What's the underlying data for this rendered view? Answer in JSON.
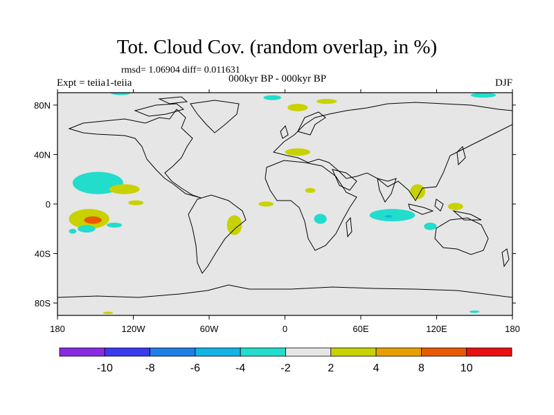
{
  "title": "Tot. Cloud Cov. (random overlap, in %)",
  "stats": "rmsd= 1.06904 diff= 0.011631",
  "experiment": "Expt = teiia1-teiia",
  "period": "000kyr BP - 000kyr BP",
  "season": "DJF",
  "colors": {
    "background": "#e6e6e6",
    "coast": "#000000",
    "bins": [
      "#8a2be2",
      "#3a3aee",
      "#1f7fe6",
      "#11b4e4",
      "#22dccc",
      "#e6e6e6",
      "#c8d200",
      "#e8a000",
      "#e85a00",
      "#e81010"
    ]
  },
  "colorbar": {
    "labels": [
      "-10",
      "-8",
      "-6",
      "-4",
      "-2",
      "2",
      "4",
      "8",
      "10"
    ]
  },
  "axes": {
    "x_ticks": [
      {
        "lon": -180,
        "label": "180"
      },
      {
        "lon": -120,
        "label": "120W"
      },
      {
        "lon": -60,
        "label": "60W"
      },
      {
        "lon": 0,
        "label": "0"
      },
      {
        "lon": 60,
        "label": "60E"
      },
      {
        "lon": 120,
        "label": "120E"
      },
      {
        "lon": 180,
        "label": "180"
      }
    ],
    "y_ticks": [
      {
        "lat": 80,
        "label": "80N"
      },
      {
        "lat": 40,
        "label": "40N"
      },
      {
        "lat": 0,
        "label": "0"
      },
      {
        "lat": -40,
        "label": "40S"
      },
      {
        "lat": -80,
        "label": "80S"
      }
    ]
  },
  "anomalies": [
    {
      "lon": -155,
      "lat": -12,
      "rx": 16,
      "ry": 8,
      "bin": 6
    },
    {
      "lon": -152,
      "lat": -13,
      "rx": 7,
      "ry": 3,
      "bin": 8
    },
    {
      "lon": -148,
      "lat": 17,
      "rx": 20,
      "ry": 9,
      "bin": 4
    },
    {
      "lon": -127,
      "lat": 12,
      "rx": 12,
      "ry": 4,
      "bin": 6
    },
    {
      "lon": -118,
      "lat": 1,
      "rx": 6,
      "ry": 2,
      "bin": 6
    },
    {
      "lon": -157,
      "lat": -20,
      "rx": 7,
      "ry": 3,
      "bin": 4
    },
    {
      "lon": -135,
      "lat": -17,
      "rx": 6,
      "ry": 2,
      "bin": 4
    },
    {
      "lon": -130,
      "lat": 90,
      "rx": 8,
      "ry": 2,
      "bin": 4
    },
    {
      "lon": -10,
      "lat": 86,
      "rx": 7,
      "ry": 2,
      "bin": 4
    },
    {
      "lon": 10,
      "lat": 78,
      "rx": 8,
      "ry": 3,
      "bin": 6
    },
    {
      "lon": 33,
      "lat": 83,
      "rx": 8,
      "ry": 2,
      "bin": 6
    },
    {
      "lon": 157,
      "lat": 88,
      "rx": 10,
      "ry": 2,
      "bin": 4
    },
    {
      "lon": 10,
      "lat": 42,
      "rx": 10,
      "ry": 3,
      "bin": 6
    },
    {
      "lon": -40,
      "lat": -17,
      "rx": 6,
      "ry": 8,
      "bin": 6
    },
    {
      "lon": -15,
      "lat": 0,
      "rx": 6,
      "ry": 2,
      "bin": 6
    },
    {
      "lon": 85,
      "lat": -9,
      "rx": 18,
      "ry": 5,
      "bin": 4
    },
    {
      "lon": 82,
      "lat": -10,
      "rx": 3,
      "ry": 1,
      "bin": 3
    },
    {
      "lon": 135,
      "lat": -2,
      "rx": 6,
      "ry": 3,
      "bin": 6
    },
    {
      "lon": 105,
      "lat": 10,
      "rx": 6,
      "ry": 6,
      "bin": 6
    },
    {
      "lon": 115,
      "lat": -18,
      "rx": 5,
      "ry": 3,
      "bin": 4
    },
    {
      "lon": 28,
      "lat": -12,
      "rx": 5,
      "ry": 4,
      "bin": 4
    },
    {
      "lon": 20,
      "lat": 11,
      "rx": 4,
      "ry": 2,
      "bin": 6
    },
    {
      "lon": -168,
      "lat": -22,
      "rx": 3,
      "ry": 2,
      "bin": 4
    },
    {
      "lon": -140,
      "lat": -88,
      "rx": 4,
      "ry": 1,
      "bin": 6
    },
    {
      "lon": 150,
      "lat": -87,
      "rx": 4,
      "ry": 1,
      "bin": 4
    }
  ]
}
